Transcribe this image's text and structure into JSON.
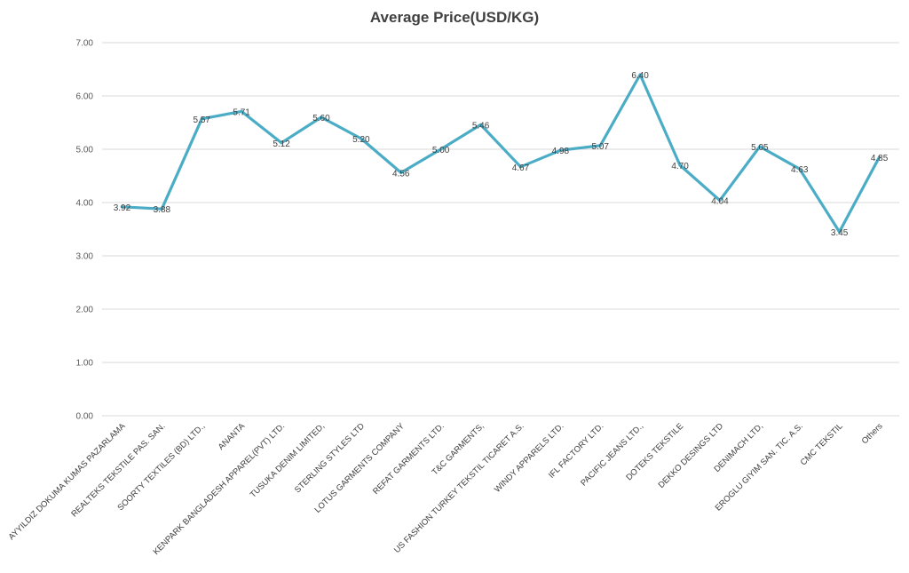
{
  "chart_data": {
    "type": "line",
    "title": "Average Price(USD/KG)",
    "xlabel": "",
    "ylabel": "",
    "ylim": [
      0,
      7
    ],
    "yticks": [
      "0.00",
      "1.00",
      "2.00",
      "3.00",
      "4.00",
      "5.00",
      "6.00",
      "7.00"
    ],
    "grid": true,
    "line_color": "#4BACC6",
    "categories": [
      "AYYILDIZ DOKUMA KUMAS PAZARLAMA",
      "REALTEKS TEKSTILE PAS. SAN.",
      "SOORTY TEXTILES (BD) LTD.,",
      "ANANTA",
      "KENPARK BANGLADESH APPAREL(PVT) LTD.",
      "TUSUKA DENIM LIMITED,",
      "STERLING STYLES LTD",
      "LOTUS GARMENTS COMPANY",
      "REFAT GARMENTS LTD.",
      "T&C GARMENTS,",
      "US FASHION TURKEY TEKSTIL TICARET A.S.",
      "WINDY APPARELS LTD.",
      "IFL FACTORY LTD.",
      "PACIFIC JEANS LTD.,",
      "DOTEKS TEKSTILE",
      "DEKKO DESINGS LTD",
      "DENIMACH LTD,",
      "EROGLU GIYIM SAN. TIC. A.S.",
      "CMC TEKSTIL",
      "Others"
    ],
    "values": [
      3.92,
      3.88,
      5.57,
      5.71,
      5.12,
      5.6,
      5.2,
      4.56,
      5.0,
      5.46,
      4.67,
      4.98,
      5.07,
      6.4,
      4.7,
      4.04,
      5.05,
      4.63,
      3.45,
      4.85
    ],
    "value_labels": [
      "3.92",
      "3.88",
      "5.57",
      "5.71",
      "5.12",
      "5.60",
      "5.20",
      "4.56",
      "5.00",
      "5.46",
      "4.67",
      "4.98",
      "5.07",
      "6.40",
      "4.70",
      "4.04",
      "5.05",
      "4.63",
      "3.45",
      "4.85"
    ]
  }
}
